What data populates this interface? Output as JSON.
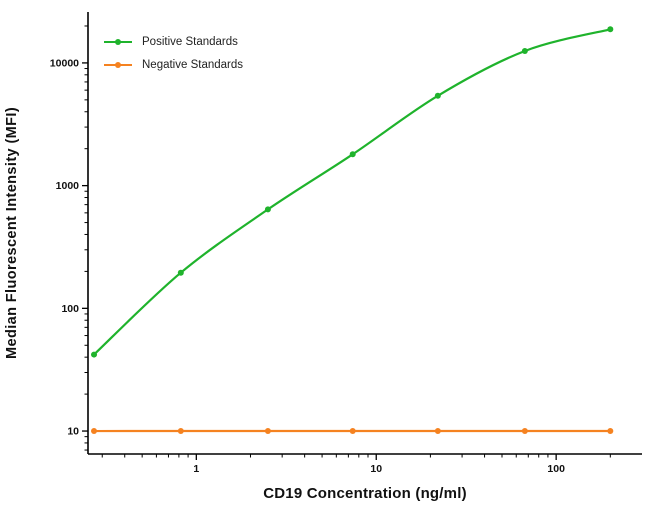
{
  "chart_data": {
    "type": "line",
    "title": "",
    "xlabel": "CD19 Concentration (ng/ml)",
    "ylabel": "Median Fluorescent Intensity (MFI)",
    "xscale": "log",
    "yscale": "log",
    "xlim": [
      0.25,
      300
    ],
    "ylim": [
      6.5,
      26000
    ],
    "x_ticks": [
      1,
      10,
      100
    ],
    "y_ticks": [
      10,
      100,
      1000,
      10000
    ],
    "grid": false,
    "legend_position": "top-left",
    "x": [
      0.27,
      0.82,
      2.5,
      7.4,
      22,
      67,
      200
    ],
    "series": [
      {
        "name": "Positive Standards",
        "color": "#1fb32c",
        "marker": "circle",
        "values": [
          42,
          195,
          640,
          1800,
          5400,
          12500,
          18800
        ]
      },
      {
        "name": "Negative Standards",
        "color": "#f58220",
        "marker": "circle",
        "values": [
          10,
          10,
          10,
          10,
          10,
          10,
          10
        ]
      }
    ]
  }
}
